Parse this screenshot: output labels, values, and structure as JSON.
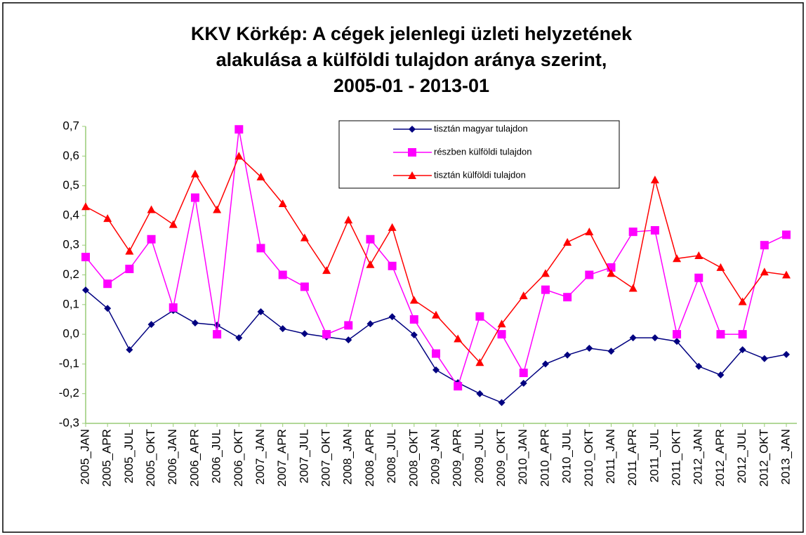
{
  "chart_data": {
    "type": "line",
    "title": [
      "KKV Körkép: A cégek jelenlegi üzleti helyzetének",
      "alakulása a külföldi tulajdon aránya szerint,",
      "2005-01 - 2013-01"
    ],
    "categories": [
      "2005_JAN",
      "2005_APR",
      "2005_JUL",
      "2005_OKT",
      "2006_JAN",
      "2006_APR",
      "2006_JUL",
      "2006_OKT",
      "2007_JAN",
      "2007_APR",
      "2007_JUL",
      "2007_OKT",
      "2008_JAN",
      "2008_APR",
      "2008_JUL",
      "2008_OKT",
      "2009_JAN",
      "2009_APR",
      "2009_JUL",
      "2009_OKT",
      "2010_JAN",
      "2010_APR",
      "2010_JUL",
      "2010_OKT",
      "2011_JAN",
      "2011_APR",
      "2011_JUL",
      "2011_OKT",
      "2012_JAN",
      "2012_APR",
      "2012_JUL",
      "2012_OKT",
      "2013_JAN"
    ],
    "series": [
      {
        "name": "tisztán magyar tulajdon",
        "color": "#000080",
        "marker": "diamond",
        "values": [
          0.149,
          0.087,
          -0.052,
          0.033,
          0.08,
          0.038,
          0.031,
          -0.012,
          0.076,
          0.019,
          0.002,
          -0.009,
          -0.019,
          0.035,
          0.059,
          -0.002,
          -0.12,
          -0.163,
          -0.2,
          -0.23,
          -0.165,
          -0.1,
          -0.07,
          -0.047,
          -0.057,
          -0.012,
          -0.012,
          -0.024,
          -0.108,
          -0.137,
          -0.052,
          -0.082,
          -0.068
        ]
      },
      {
        "name": "részben külföldi tulajdon",
        "color": "#ff00ff",
        "marker": "square",
        "values": [
          0.26,
          0.17,
          0.22,
          0.32,
          0.09,
          0.46,
          0.0,
          0.69,
          0.29,
          0.2,
          0.16,
          0.0,
          0.03,
          0.32,
          0.23,
          0.05,
          -0.065,
          -0.175,
          0.06,
          0.0,
          -0.13,
          0.15,
          0.125,
          0.2,
          0.225,
          0.345,
          0.35,
          0.0,
          0.19,
          0.0,
          0.0,
          0.3,
          0.335
        ]
      },
      {
        "name": "tisztán külföldi tulajdon",
        "color": "#ff0000",
        "marker": "triangle",
        "values": [
          0.43,
          0.39,
          0.28,
          0.42,
          0.37,
          0.54,
          0.42,
          0.6,
          0.53,
          0.44,
          0.325,
          0.215,
          0.385,
          0.235,
          0.36,
          0.115,
          0.065,
          -0.015,
          -0.095,
          0.035,
          0.13,
          0.205,
          0.31,
          0.345,
          0.205,
          0.155,
          0.52,
          0.255,
          0.265,
          0.225,
          0.11,
          0.21,
          0.2
        ]
      }
    ],
    "ylim": [
      -0.3,
      0.7
    ],
    "yticks": [
      {
        "value": -0.3,
        "label": "-0,3"
      },
      {
        "value": -0.2,
        "label": "-0,2"
      },
      {
        "value": -0.1,
        "label": "-0,1"
      },
      {
        "value": 0,
        "label": "0,0"
      },
      {
        "value": 0.1,
        "label": "0,1"
      },
      {
        "value": 0.2,
        "label": "0,2"
      },
      {
        "value": 0.3,
        "label": "0,3"
      },
      {
        "value": 0.4,
        "label": "0,4"
      },
      {
        "value": 0.5,
        "label": "0,5"
      },
      {
        "value": 0.6,
        "label": "0,6"
      },
      {
        "value": 0.7,
        "label": "0,7"
      }
    ],
    "grid": false
  }
}
